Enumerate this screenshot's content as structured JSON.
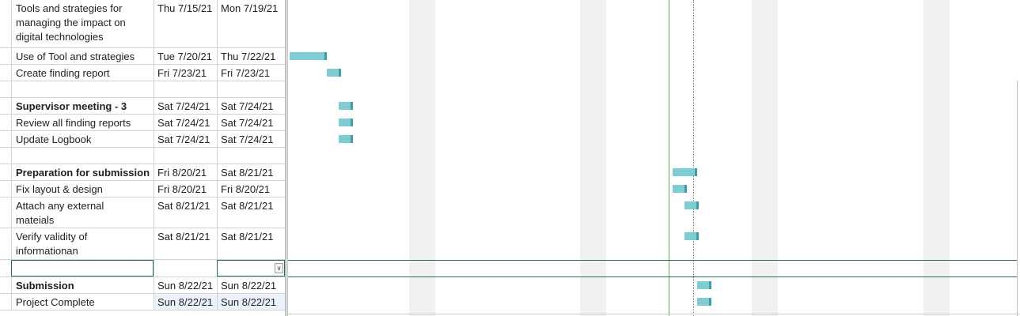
{
  "tasks": [
    {
      "name": "Tools and strategies for\nmanaging the impact on\ndigital technologies",
      "start": "Thu 7/15/21",
      "finish": "Mon 7/19/21",
      "bold": false
    },
    {
      "name": "Use of Tool and strategies",
      "start": "Tue 7/20/21",
      "finish": "Thu 7/22/21",
      "bold": false
    },
    {
      "name": "Create finding report",
      "start": "Fri 7/23/21",
      "finish": "Fri 7/23/21",
      "bold": false
    },
    {
      "name": "",
      "start": "",
      "finish": "",
      "bold": false
    },
    {
      "name": "Supervisor meeting - 3",
      "start": "Sat 7/24/21",
      "finish": "Sat 7/24/21",
      "bold": true
    },
    {
      "name": "Review all finding reports",
      "start": "Sat 7/24/21",
      "finish": "Sat 7/24/21",
      "bold": false
    },
    {
      "name": "Update Logbook",
      "start": "Sat 7/24/21",
      "finish": "Sat 7/24/21",
      "bold": false
    },
    {
      "name": "",
      "start": "",
      "finish": "",
      "bold": false
    },
    {
      "name": "Preparation for submission",
      "start": "Fri 8/20/21",
      "finish": "Sat 8/21/21",
      "bold": true
    },
    {
      "name": "Fix layout & design",
      "start": "Fri 8/20/21",
      "finish": "Fri 8/20/21",
      "bold": false
    },
    {
      "name": "Attach any external\nmateials",
      "start": "Sat 8/21/21",
      "finish": "Sat 8/21/21",
      "bold": false
    },
    {
      "name": "Verify validity of\ninformationan",
      "start": "Sat 8/21/21",
      "finish": "Sat 8/21/21",
      "bold": false
    },
    {
      "name": "",
      "start": "",
      "finish": "",
      "bold": false,
      "selected": true
    },
    {
      "name": "Submission",
      "start": "Sun 8/22/21",
      "finish": "Sun 8/22/21",
      "bold": true
    },
    {
      "name": "Project Complete",
      "start": "Sun 8/22/21",
      "finish": "Sun 8/22/21",
      "bold": false,
      "highlight": true
    }
  ],
  "colors": {
    "bar_fill": "#7ccdd4",
    "bar_edge": "#3e9ea8",
    "today_line": "#6aa84f",
    "selection": "#217346",
    "nonworking": "#f1f1f1"
  },
  "icons": {
    "dropdown": "chevron-down-icon"
  }
}
